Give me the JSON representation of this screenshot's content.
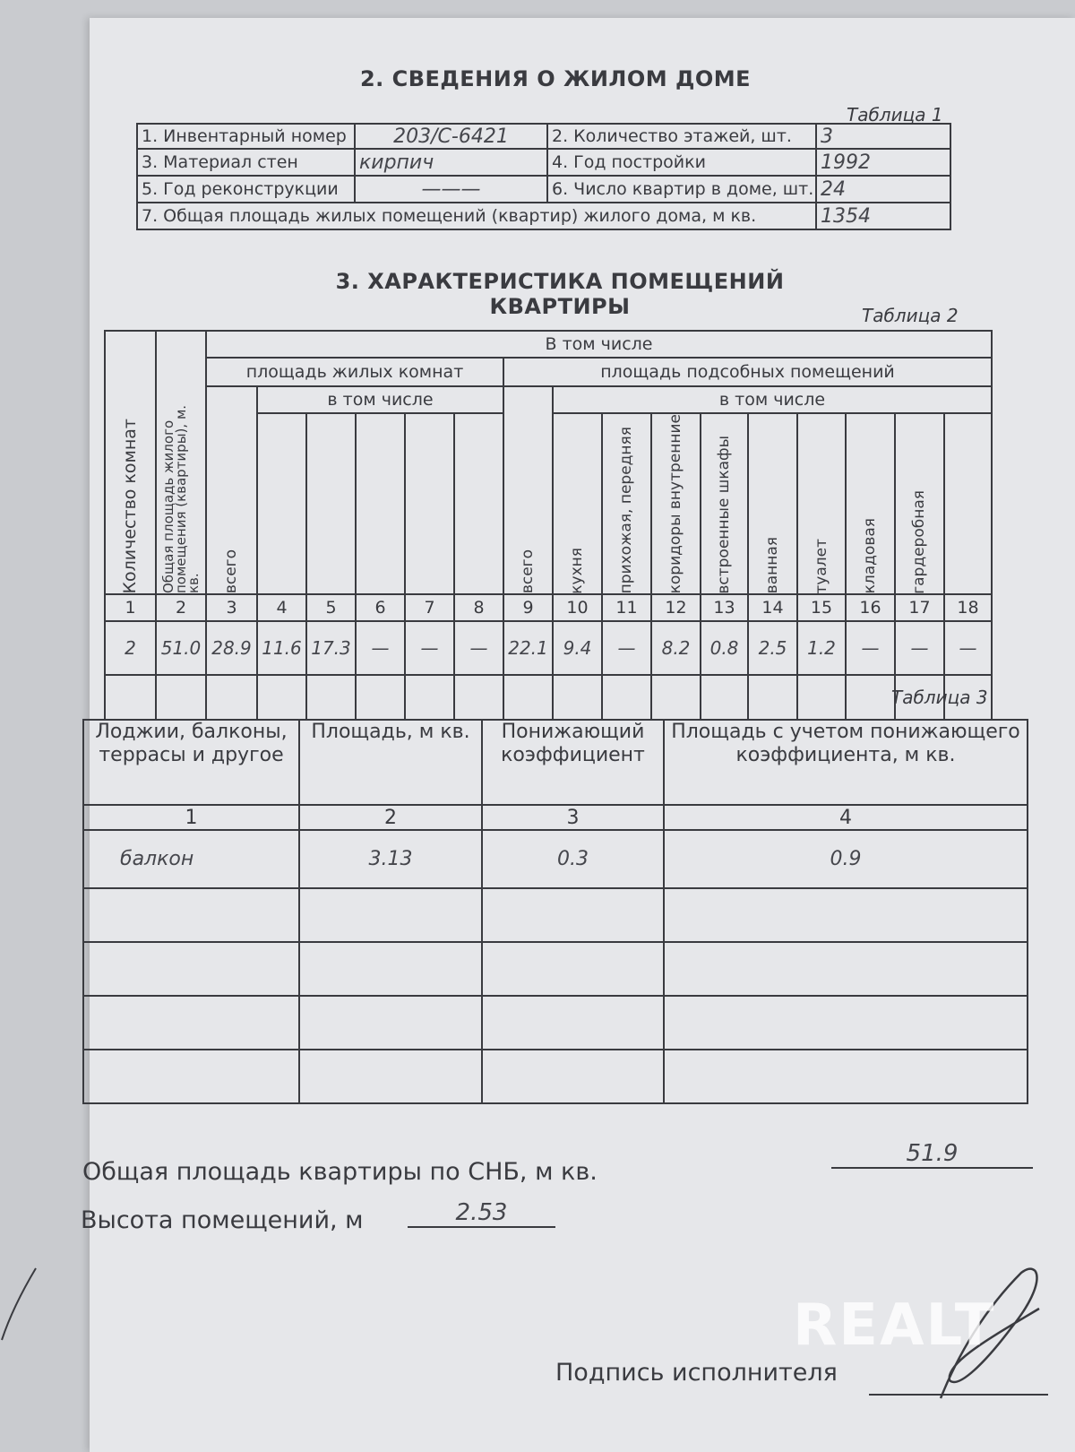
{
  "section2": {
    "title": "2. СВЕДЕНИЯ О ЖИЛОМ ДОМЕ",
    "table_label": "Таблица 1",
    "rows": [
      {
        "l1": "1. Инвентарный номер",
        "v1": "203/С-6421",
        "l2": "2. Количество этажей, шт.",
        "v2": "3"
      },
      {
        "l1": "3. Материал стен",
        "v1": "кирпич",
        "l2": "4. Год постройки",
        "v2": "1992"
      },
      {
        "l1": "5. Год реконструкции",
        "v1": "———",
        "l2": "6. Число квартир в доме, шт.",
        "v2": "24"
      }
    ],
    "total_label": "7. Общая площадь жилых помещений (квартир) жилого дома, м кв.",
    "total_value": "1354"
  },
  "section3": {
    "title": "3. ХАРАКТЕРИСТИКА ПОМЕЩЕНИЙ КВАРТИРЫ",
    "table_label": "Таблица 2",
    "h_rooms": "Количество комнат",
    "h_total": "Общая площадь жилого помещения (квартиры), м. кв.",
    "h_incl": "В том числе",
    "h_living": "площадь жилых комнат",
    "h_aux": "площадь подсобных помещений",
    "h_incl2": "в том числе",
    "h_all": "всего",
    "aux_cols": [
      "кухня",
      "прихожая, передняя",
      "коридоры внутренние",
      "встроенные шкафы",
      "ванная",
      "туалет",
      "кладовая",
      "гардеробная",
      ""
    ],
    "numbers": [
      "1",
      "2",
      "3",
      "4",
      "5",
      "6",
      "7",
      "8",
      "9",
      "10",
      "11",
      "12",
      "13",
      "14",
      "15",
      "16",
      "17",
      "18"
    ],
    "values": [
      "2",
      "51.0",
      "28.9",
      "11.6",
      "17.3",
      "—",
      "—",
      "—",
      "22.1",
      "9.4",
      "—",
      "8.2",
      "0.8",
      "2.5",
      "1.2",
      "—",
      "—",
      "—"
    ]
  },
  "table3": {
    "table_label": "Таблица 3",
    "headers": [
      "Лоджии, балконы, террасы и другое",
      "Площадь, м кв.",
      "Понижающий коэффициент",
      "Площадь с учетом понижающего коэффициента, м кв."
    ],
    "numbers": [
      "1",
      "2",
      "3",
      "4"
    ],
    "row": [
      "балкон",
      "3.13",
      "0.3",
      "0.9"
    ]
  },
  "footer": {
    "total_label": "Общая площадь квартиры по СНБ, м кв.",
    "total_value": "51.9",
    "height_label": "Высота помещений, м",
    "height_value": "2.53",
    "signature_label": "Подпись исполнителя"
  },
  "watermark": "REALT"
}
